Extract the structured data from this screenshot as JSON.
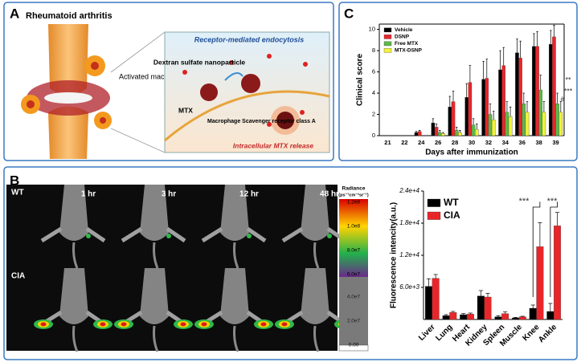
{
  "panel_a": {
    "label": "A",
    "title": "Rheumatoid arthritis",
    "macrophage": "Activated macrophage",
    "inset_title": "Receptor-mediated endocytosis",
    "nanoparticle": "Dextran sulfate nanoparticle",
    "drug": "MTX",
    "receptor": "Macrophage Scavenger receptor class A",
    "release": "Intracellular MTX release"
  },
  "panel_b": {
    "label": "B",
    "groups": [
      "WT",
      "CIA"
    ],
    "times": [
      "1 hr",
      "3 hr",
      "12 hr",
      "48 hr"
    ],
    "colorbar_title": "Radiance",
    "colorbar_unit": "(ps⁻¹cm⁻²sr⁻¹)",
    "colorbar_upper": [
      "1.2e8",
      "1.0e8",
      "8.0e7",
      "6.0e7"
    ],
    "colorbar_lower": [
      "4.0e7",
      "2.0e7",
      "0.00"
    ]
  },
  "panel_c": {
    "label": "C"
  },
  "chart_data": [
    {
      "type": "bar",
      "y_label": "Clinical score",
      "x_label": "Days after immunization",
      "categories": [
        "21",
        "22",
        "24",
        "26",
        "28",
        "30",
        "32",
        "34",
        "36",
        "38",
        "39"
      ],
      "ylim": [
        0,
        10.5
      ],
      "yticks": [
        0,
        2,
        4,
        6,
        8,
        10
      ],
      "series": [
        {
          "name": "Vehicle",
          "color": "#000000",
          "values": [
            0,
            0,
            0.3,
            1.2,
            2.7,
            3.6,
            5.3,
            6.2,
            7.8,
            8.4,
            8.6
          ],
          "errors": [
            0,
            0,
            0.1,
            0.4,
            1.0,
            1.3,
            1.7,
            1.8,
            1.3,
            1.2,
            1.3
          ]
        },
        {
          "name": "DSNP",
          "color": "#e8262a",
          "values": [
            0,
            0,
            0.4,
            0.8,
            3.2,
            5.0,
            5.4,
            6.6,
            7.3,
            8.4,
            9.3
          ],
          "errors": [
            0,
            0,
            0.1,
            0.3,
            1.0,
            1.6,
            1.8,
            1.7,
            1.6,
            1.4,
            1.1
          ]
        },
        {
          "name": "Free MTX",
          "color": "#5cb947",
          "values": [
            0,
            0,
            0,
            0.3,
            0.5,
            1.0,
            2.0,
            2.2,
            3.0,
            4.3,
            3.0
          ],
          "errors": [
            0,
            0,
            0,
            0.2,
            0.3,
            0.6,
            1.0,
            1.0,
            1.0,
            1.4,
            1.0
          ]
        },
        {
          "name": "MTX-DSNP",
          "color": "#f2f23a",
          "values": [
            0,
            0,
            0,
            0.2,
            0.3,
            0.6,
            1.5,
            1.8,
            2.2,
            2.2,
            2.2
          ],
          "errors": [
            0,
            0,
            0,
            0.1,
            0.2,
            0.5,
            0.8,
            0.9,
            1.0,
            1.0,
            1.0
          ]
        }
      ],
      "annotations": [
        "**",
        "***",
        "#"
      ]
    },
    {
      "type": "bar",
      "y_label": "Fluorescence intencity(a.u.)",
      "categories": [
        "Liver",
        "Lung",
        "Heart",
        "Kidney",
        "Spleen",
        "Muscle",
        "Knee",
        "Ankle"
      ],
      "ylim": [
        0,
        24000
      ],
      "yticks": [
        {
          "value": 6000,
          "label": "6.0e+3"
        },
        {
          "value": 12000,
          "label": "1.2e+4"
        },
        {
          "value": 18000,
          "label": "1.8e+4"
        },
        {
          "value": 24000,
          "label": "2.4e+4"
        }
      ],
      "series": [
        {
          "name": "WT",
          "color": "#000000",
          "values": [
            6200,
            700,
            900,
            4400,
            500,
            300,
            2100,
            1500
          ],
          "errors": [
            1400,
            200,
            200,
            1000,
            200,
            100,
            600,
            1500
          ]
        },
        {
          "name": "CIA",
          "color": "#e8262a",
          "values": [
            7700,
            1300,
            1000,
            4200,
            1100,
            500,
            13600,
            17500
          ],
          "errors": [
            700,
            200,
            200,
            700,
            300,
            100,
            4500,
            2500
          ]
        }
      ],
      "annotations": [
        "***",
        "***"
      ]
    }
  ]
}
